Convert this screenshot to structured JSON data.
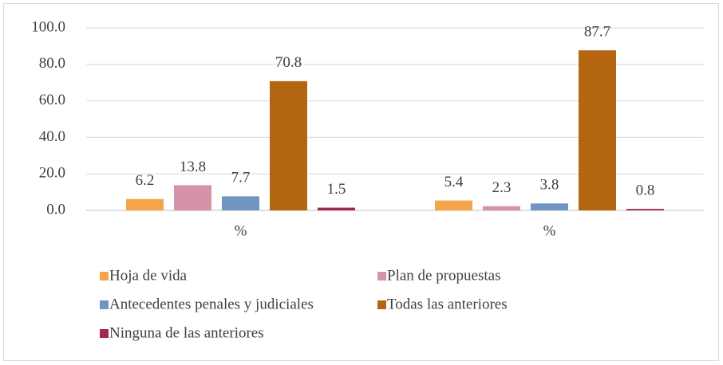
{
  "chart_data": {
    "type": "bar",
    "categories": [
      "%",
      "%"
    ],
    "series": [
      {
        "name": "Hoja de vida",
        "color": "#f4a54a",
        "values": [
          6.2,
          5.4
        ]
      },
      {
        "name": "Plan de propuestas",
        "color": "#d493a8",
        "values": [
          13.8,
          2.3
        ]
      },
      {
        "name": "Antecedentes penales y judiciales",
        "color": "#7095c2",
        "values": [
          7.7,
          3.8
        ]
      },
      {
        "name": "Todas las anteriores",
        "color": "#b3650f",
        "values": [
          70.8,
          87.7
        ]
      },
      {
        "name": "Ninguna de las anteriores",
        "color": "#a12a4c",
        "values": [
          1.5,
          0.8
        ]
      }
    ],
    "ylim": [
      0,
      100
    ],
    "yticks": [
      {
        "value": 0,
        "label": "0.0"
      },
      {
        "value": 20,
        "label": "20.0"
      },
      {
        "value": 40,
        "label": "40.0"
      },
      {
        "value": 60,
        "label": "60.0"
      },
      {
        "value": 80,
        "label": "80.0"
      },
      {
        "value": 100,
        "label": "100.0"
      }
    ],
    "grid": true,
    "legend": "bottom"
  }
}
